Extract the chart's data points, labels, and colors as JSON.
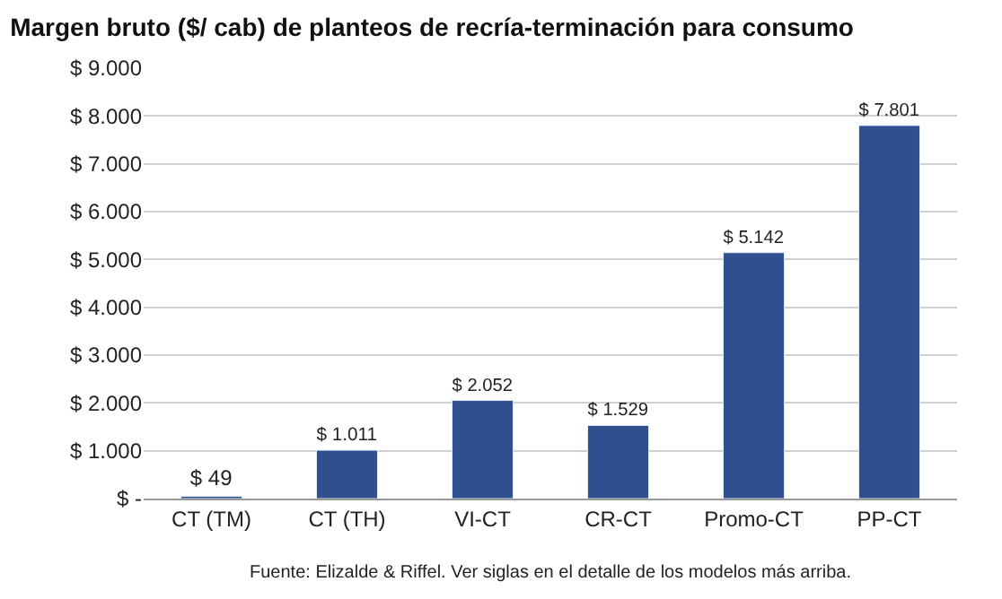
{
  "chart_data": {
    "type": "bar",
    "title": "Margen bruto ($/ cab) de planteos de recría-terminación para consumo",
    "categories": [
      "CT (TM)",
      "CT (TH)",
      "VI-CT",
      "CR-CT",
      "Promo-CT",
      "PP-CT"
    ],
    "values": [
      49,
      1011,
      2052,
      1529,
      5142,
      7801
    ],
    "value_labels": [
      "$ 49",
      "$ 1.011",
      "$ 2.052",
      "$ 1.529",
      "$ 5.142",
      "$ 7.801"
    ],
    "color": "#2f4f8f",
    "ylim": [
      0,
      9000
    ],
    "yticks": [
      {
        "value": 0,
        "label": "$ -"
      },
      {
        "value": 1000,
        "label": "$ 1.000"
      },
      {
        "value": 2000,
        "label": "$ 2.000"
      },
      {
        "value": 3000,
        "label": "$ 3.000"
      },
      {
        "value": 4000,
        "label": "$ 4.000"
      },
      {
        "value": 5000,
        "label": "$ 5.000"
      },
      {
        "value": 6000,
        "label": "$ 6.000"
      },
      {
        "value": 7000,
        "label": "$ 7.000"
      },
      {
        "value": 8000,
        "label": "$ 8.000"
      },
      {
        "value": 9000,
        "label": "$ 9.000"
      }
    ],
    "grid": "y",
    "legend": false,
    "annotations": [
      "Fuente: Elizalde & Riffel. Ver siglas en el detalle de los modelos más arriba."
    ]
  }
}
